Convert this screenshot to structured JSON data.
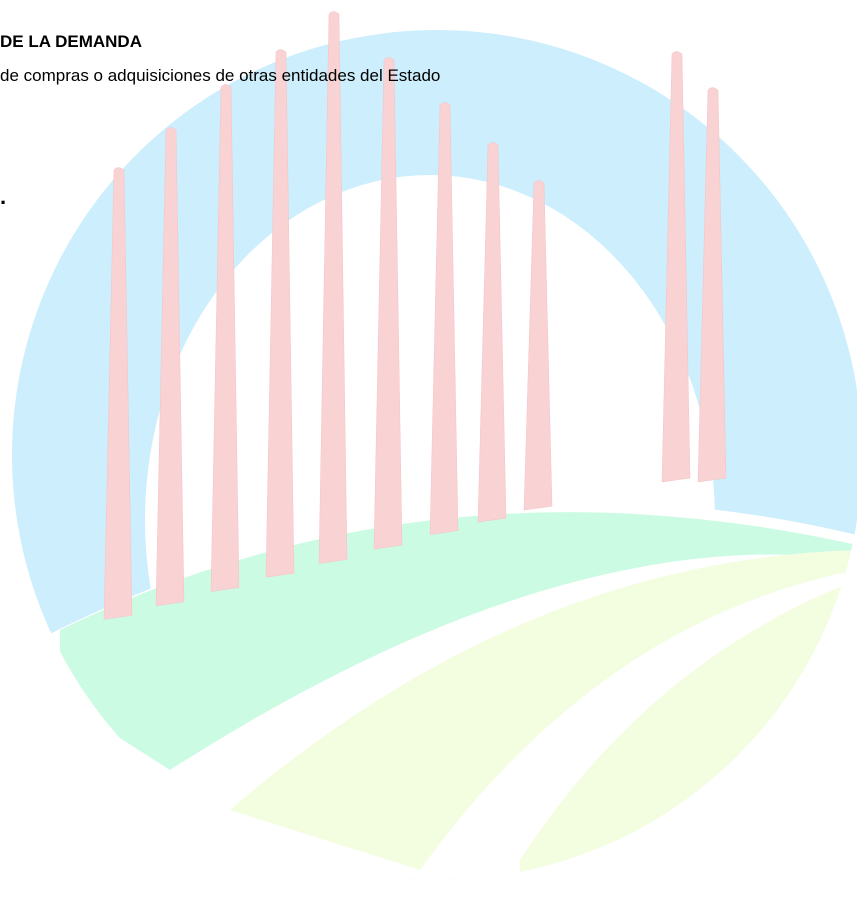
{
  "document": {
    "heading": "DE LA DEMANDA",
    "line": "de compras o adquisiciones de otras entidades del Estado",
    "fragment": "."
  }
}
